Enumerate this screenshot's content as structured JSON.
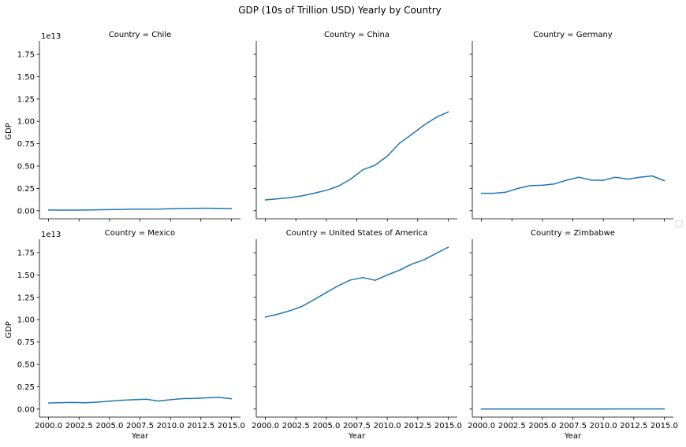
{
  "chart_data": {
    "type": "line",
    "title": "GDP (10s of Trillion USD) Yearly by Country",
    "xlabel": "Year",
    "ylabel": "GDP",
    "y_offset_label": "1e13",
    "xlim": [
      1999.25,
      2015.75
    ],
    "ylim": [
      -0.09,
      1.9
    ],
    "x_ticks": [
      2000.0,
      2002.5,
      2005.0,
      2007.5,
      2010.0,
      2012.5,
      2015.0
    ],
    "x_tick_labels": [
      "2000.0",
      "2002.5",
      "2005.0",
      "2007.5",
      "2010.0",
      "2012.5",
      "2015.0"
    ],
    "y_ticks": [
      0.0,
      0.25,
      0.5,
      0.75,
      1.0,
      1.25,
      1.5,
      1.75
    ],
    "y_tick_labels": [
      "0.00",
      "0.25",
      "0.50",
      "0.75",
      "1.00",
      "1.25",
      "1.50",
      "1.75"
    ],
    "grid": false,
    "line_color": "#1f77b4",
    "legend": "right, empty",
    "x": [
      2000,
      2001,
      2002,
      2003,
      2004,
      2005,
      2006,
      2007,
      2008,
      2009,
      2010,
      2011,
      2012,
      2013,
      2014,
      2015
    ],
    "facets": [
      {
        "title": "Country = Chile",
        "values": [
          0.008,
          0.007,
          0.007,
          0.008,
          0.01,
          0.012,
          0.015,
          0.017,
          0.018,
          0.017,
          0.022,
          0.025,
          0.027,
          0.028,
          0.026,
          0.024
        ]
      },
      {
        "title": "Country = China",
        "values": [
          0.121,
          0.134,
          0.147,
          0.166,
          0.196,
          0.229,
          0.275,
          0.355,
          0.459,
          0.51,
          0.61,
          0.755,
          0.853,
          0.957,
          1.044,
          1.106
        ]
      },
      {
        "title": "Country = Germany",
        "values": [
          0.195,
          0.195,
          0.208,
          0.25,
          0.281,
          0.285,
          0.3,
          0.342,
          0.375,
          0.342,
          0.341,
          0.375,
          0.354,
          0.375,
          0.39,
          0.336
        ]
      },
      {
        "title": "Country = Mexico",
        "values": [
          0.068,
          0.072,
          0.074,
          0.071,
          0.077,
          0.088,
          0.098,
          0.105,
          0.111,
          0.09,
          0.105,
          0.117,
          0.119,
          0.126,
          0.13,
          0.115
        ]
      },
      {
        "title": "Country = United States of America",
        "values": [
          1.029,
          1.06,
          1.1,
          1.149,
          1.225,
          1.304,
          1.381,
          1.445,
          1.471,
          1.44,
          1.499,
          1.554,
          1.621,
          1.669,
          1.741,
          1.81
        ]
      },
      {
        "title": "Country = Zimbabwe",
        "values": [
          0.0007,
          0.0007,
          0.0006,
          0.0006,
          0.0006,
          0.0006,
          0.0005,
          0.0005,
          0.0004,
          0.0009,
          0.001,
          0.0012,
          0.0014,
          0.0015,
          0.0016,
          0.0016
        ]
      }
    ]
  }
}
